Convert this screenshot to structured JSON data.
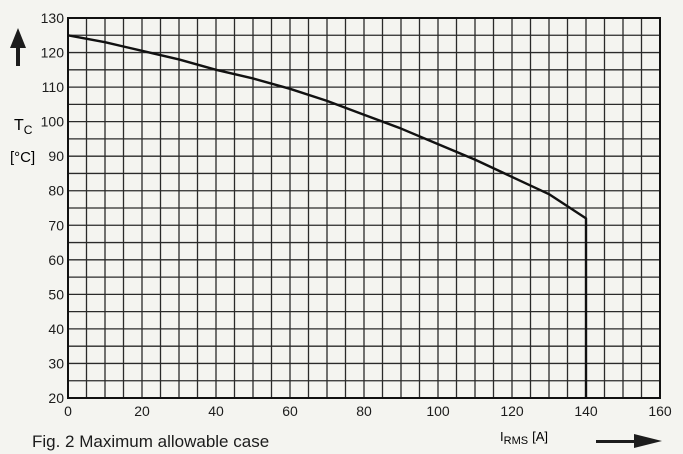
{
  "chart_data": {
    "type": "line",
    "caption": "Fig. 2 Maximum allowable case",
    "y_axis": {
      "symbol": "T",
      "subscript": "C",
      "unit": "[°C]",
      "range": [
        20,
        130
      ],
      "ticks": [
        20,
        30,
        40,
        50,
        60,
        70,
        80,
        90,
        100,
        110,
        120,
        130
      ]
    },
    "x_axis": {
      "symbol": "I",
      "subscript": "RMS",
      "unit": "[A]",
      "range": [
        0,
        160
      ],
      "ticks": [
        0,
        20,
        40,
        60,
        80,
        100,
        120,
        140,
        160
      ]
    },
    "grid": "on",
    "grid_minor_step": {
      "x": 5,
      "y": 5
    },
    "series": [
      {
        "x": [
          0,
          10,
          20,
          30,
          40,
          50,
          60,
          70,
          80,
          90,
          100,
          110,
          120,
          130,
          140,
          140
        ],
        "y": [
          125,
          123,
          120.5,
          118,
          115,
          112.5,
          109.5,
          106,
          102,
          98,
          93.5,
          89,
          84,
          79,
          72,
          20
        ]
      }
    ],
    "colors": {
      "line": "#111111",
      "grid": "#2a2a2a",
      "background": "#f4f4f0"
    }
  }
}
